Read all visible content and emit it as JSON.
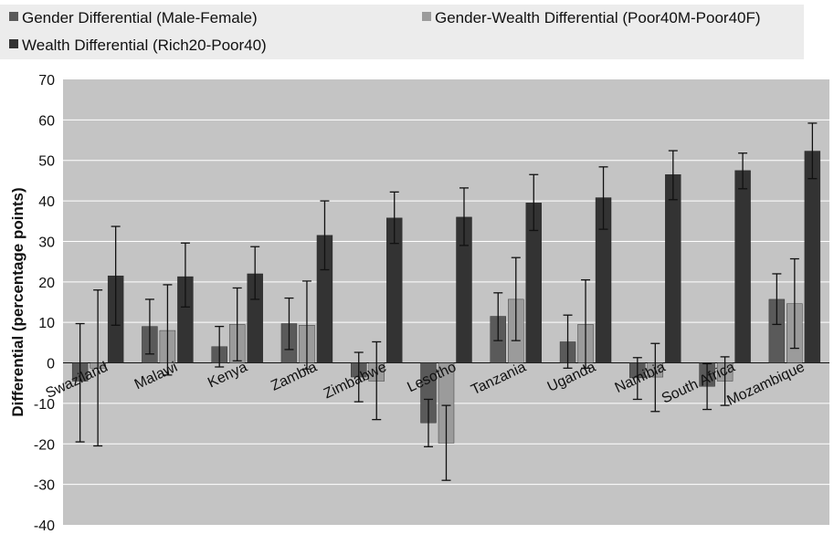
{
  "chart_data": {
    "type": "bar",
    "ylabel": "Differential (percentage points)",
    "ylim": [
      -40,
      70
    ],
    "yticks": [
      70,
      60,
      50,
      40,
      30,
      20,
      10,
      0,
      -10,
      -20,
      -30,
      -40
    ],
    "grid": true,
    "legend_position": "top",
    "categories": [
      "Swaziland",
      "Malawi",
      "Kenya",
      "Zambia",
      "Zimbabwe",
      "Lesotho",
      "Tanzania",
      "Uganda",
      "Namibia",
      "South Africa",
      "Mozambique"
    ],
    "series": [
      {
        "name": "Gender Differential (Male-Female)",
        "color": "#5a5a5a",
        "values": [
          -4.5,
          9,
          4,
          9.7,
          -3.5,
          -14.8,
          11.5,
          5.2,
          -3.7,
          -5.8,
          15.7
        ],
        "err_low": [
          -19.5,
          2.2,
          -1,
          3.3,
          -9.6,
          -20.7,
          5.5,
          -1.3,
          -9,
          -11.5,
          9.5
        ],
        "err_high": [
          9.7,
          15.7,
          9,
          16,
          2.6,
          -9,
          17.3,
          11.8,
          1.3,
          -0.2,
          22
        ]
      },
      {
        "name": "Gender-Wealth Differential (Poor40M-Poor40F)",
        "color": "#9b9b9b",
        "values": [
          -1.3,
          8,
          9.5,
          9.3,
          -4.5,
          -19.8,
          15.7,
          9.5,
          -3.5,
          -4.5,
          14.6
        ],
        "err_low": [
          -20.5,
          -3,
          0.5,
          -1.5,
          -14,
          -29,
          5.5,
          -1.3,
          -12,
          -10.5,
          3.6
        ],
        "err_high": [
          18,
          19.3,
          18.5,
          20.2,
          5.2,
          -10.5,
          26,
          20.5,
          4.8,
          1.5,
          25.7
        ]
      },
      {
        "name": "Wealth Differential (Rich20-Poor40)",
        "color": "#333333",
        "values": [
          21.5,
          21.3,
          22,
          31.5,
          35.8,
          36,
          39.5,
          40.8,
          46.5,
          47.5,
          52.3
        ],
        "err_low": [
          9.3,
          13.8,
          15.7,
          23,
          29.5,
          29,
          32.7,
          33,
          40.3,
          43,
          45.5
        ],
        "err_high": [
          33.7,
          29.6,
          28.7,
          40,
          42.2,
          43.2,
          46.5,
          48.4,
          52.4,
          51.8,
          59.2
        ]
      }
    ]
  }
}
